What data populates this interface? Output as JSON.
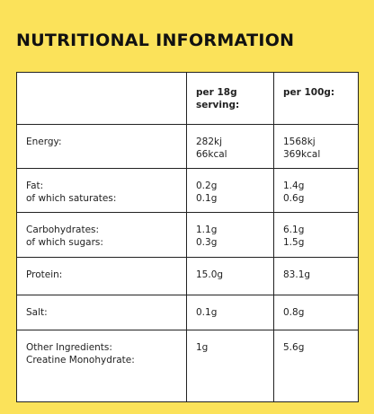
{
  "header": {
    "title": "NUTRITIONAL INFORMATION"
  },
  "table": {
    "columns": [
      "per 18g serving:",
      "per 100g:"
    ],
    "rows": [
      [
        [
          "Energy:"
        ],
        [
          "282kj",
          "66kcal"
        ],
        [
          "1568kj",
          "369kcal"
        ]
      ],
      [
        [
          "Fat:",
          "of which saturates:"
        ],
        [
          "0.2g",
          "0.1g"
        ],
        [
          "1.4g",
          "0.6g"
        ]
      ],
      [
        [
          "Carbohydrates:",
          "of which sugars:"
        ],
        [
          "1.1g",
          "0.3g"
        ],
        [
          "6.1g",
          "1.5g"
        ]
      ],
      [
        [
          "Protein:"
        ],
        [
          "15.0g"
        ],
        [
          "83.1g"
        ]
      ],
      [
        [
          "Salt:"
        ],
        [
          "0.1g"
        ],
        [
          "0.8g"
        ]
      ],
      [
        [
          "Other Ingredients:",
          "Creatine Monohydrate:"
        ],
        [
          "1g"
        ],
        [
          "5.6g"
        ]
      ]
    ]
  }
}
